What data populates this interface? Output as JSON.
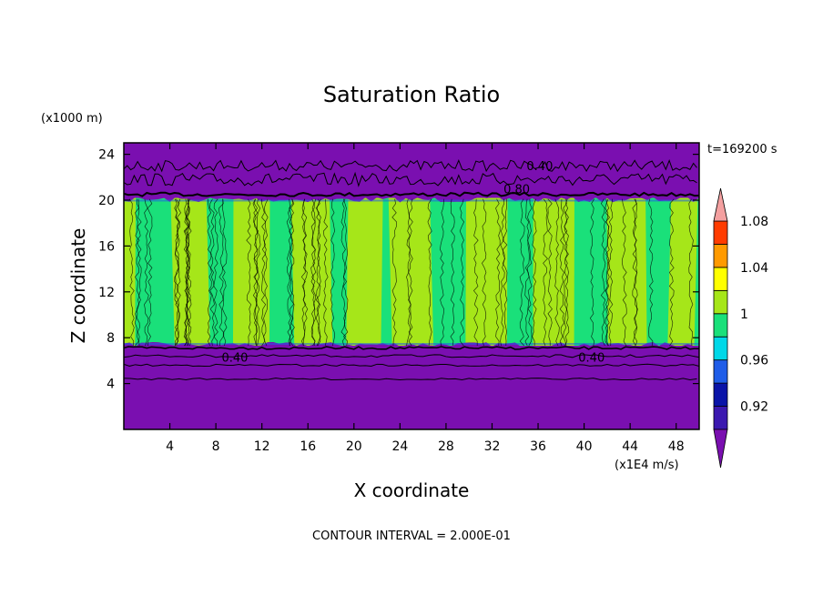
{
  "chart_data": {
    "type": "heatmap",
    "title": "Saturation Ratio",
    "xlabel": "X coordinate",
    "ylabel": "Z coordinate",
    "x_units": "(x1E4 m/s)",
    "y_units": "(x1000 m)",
    "x_ticks": [
      4,
      8,
      12,
      16,
      20,
      24,
      28,
      32,
      36,
      40,
      44,
      48
    ],
    "y_ticks": [
      4,
      8,
      12,
      16,
      20,
      24
    ],
    "xlim": [
      0,
      50
    ],
    "ylim": [
      0,
      25
    ],
    "time_label": "t=169200 s",
    "footer": "CONTOUR INTERVAL = 2.000E-01",
    "contour_labels": [
      "0.40",
      "0.40",
      "0.40",
      "0.80"
    ],
    "colorbar": {
      "tick_labels": [
        "0.92",
        "0.96",
        "1",
        "1.04",
        "1.08"
      ],
      "levels": [
        0.9,
        0.92,
        0.94,
        0.96,
        0.98,
        1.0,
        1.02,
        1.04,
        1.06,
        1.08,
        1.1
      ],
      "colors": [
        "#7a0fb0",
        "#3b18b0",
        "#0a14a8",
        "#1f5de8",
        "#00d8e8",
        "#1ae07a",
        "#a6e619",
        "#ffff00",
        "#ff9a00",
        "#ff3c00",
        "#f4a0a0"
      ],
      "extend": "both"
    },
    "layers": [
      {
        "region": "lower dry layer",
        "z_range": [
          0,
          7.3
        ],
        "value": "<0.90"
      },
      {
        "region": "cloud layer",
        "z_range": [
          7.3,
          20.2
        ],
        "values": [
          "0.98-1.00",
          "1.00-1.02"
        ]
      },
      {
        "region": "upper dry layer",
        "z_range": [
          20.2,
          25
        ],
        "value": "<0.90"
      }
    ]
  }
}
